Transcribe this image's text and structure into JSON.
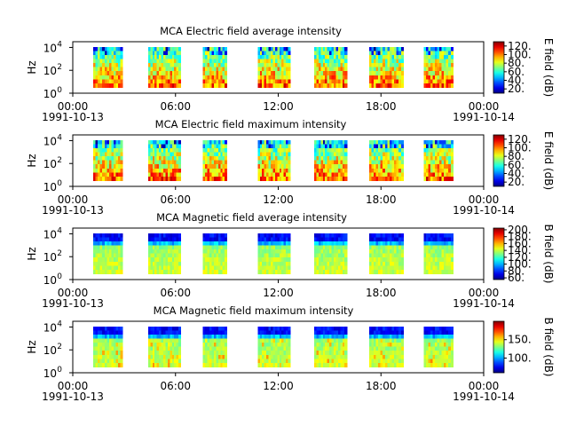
{
  "chart_data": [
    {
      "type": "heatmap",
      "title": "MCA  Electric field average intensity",
      "ylabel": "Hz",
      "y_ticks": [
        {
          "base": "10",
          "exp": "0"
        },
        {
          "base": "10",
          "exp": "2"
        },
        {
          "base": "10",
          "exp": "4"
        }
      ],
      "y_scale": "log",
      "ylim": [
        1,
        31623
      ],
      "x_ticks": [
        "00:00",
        "06:00",
        "12:00",
        "18:00",
        "00:00"
      ],
      "x_dates": [
        "1991-10-13",
        "1991-10-14"
      ],
      "xlim_hours": [
        0,
        24
      ],
      "colorbar": {
        "label": "E field (dB)",
        "range": [
          10,
          130
        ],
        "ticks": [
          "20.",
          "40.",
          "60.",
          "80.",
          "100.",
          "120."
        ]
      },
      "data_blocks_hours": [
        [
          1.2,
          2.9
        ],
        [
          4.4,
          6.3
        ],
        [
          7.6,
          9.0
        ],
        [
          10.8,
          12.7
        ],
        [
          14.1,
          16.0
        ],
        [
          17.3,
          19.3
        ],
        [
          20.5,
          22.2
        ]
      ],
      "occupied_frequency_hz": [
        3.2,
        11220
      ],
      "colormap": "jet"
    },
    {
      "type": "heatmap",
      "title": "MCA  Electric field maximum intensity",
      "ylabel": "Hz",
      "y_ticks": [
        {
          "base": "10",
          "exp": "0"
        },
        {
          "base": "10",
          "exp": "2"
        },
        {
          "base": "10",
          "exp": "4"
        }
      ],
      "y_scale": "log",
      "ylim": [
        1,
        31623
      ],
      "x_ticks": [
        "00:00",
        "06:00",
        "12:00",
        "18:00",
        "00:00"
      ],
      "x_dates": [
        "1991-10-13",
        "1991-10-14"
      ],
      "xlim_hours": [
        0,
        24
      ],
      "colorbar": {
        "label": "E field (dB)",
        "range": [
          10,
          130
        ],
        "ticks": [
          "20.",
          "40.",
          "60.",
          "80.",
          "100.",
          "120."
        ]
      },
      "data_blocks_hours": [
        [
          1.2,
          2.9
        ],
        [
          4.4,
          6.3
        ],
        [
          7.6,
          9.0
        ],
        [
          10.8,
          12.7
        ],
        [
          14.1,
          16.0
        ],
        [
          17.3,
          19.3
        ],
        [
          20.5,
          22.2
        ]
      ],
      "occupied_frequency_hz": [
        3.2,
        11220
      ],
      "colormap": "jet"
    },
    {
      "type": "heatmap",
      "title": "MCA  Magnetic field average intensity",
      "ylabel": "Hz",
      "y_ticks": [
        {
          "base": "10",
          "exp": "0"
        },
        {
          "base": "10",
          "exp": "2"
        },
        {
          "base": "10",
          "exp": "4"
        }
      ],
      "y_scale": "log",
      "ylim": [
        1,
        31623
      ],
      "x_ticks": [
        "00:00",
        "06:00",
        "12:00",
        "18:00",
        "00:00"
      ],
      "x_dates": [
        "1991-10-13",
        "1991-10-14"
      ],
      "xlim_hours": [
        0,
        24
      ],
      "colorbar": {
        "label": "B field (dB)",
        "range": [
          55,
          205
        ],
        "ticks": [
          "60.",
          "80.",
          "100.",
          "120.",
          "140.",
          "160.",
          "180.",
          "200."
        ]
      },
      "data_blocks_hours": [
        [
          1.2,
          2.9
        ],
        [
          4.4,
          6.3
        ],
        [
          7.6,
          9.0
        ],
        [
          10.8,
          12.7
        ],
        [
          14.1,
          16.0
        ],
        [
          17.3,
          19.3
        ],
        [
          20.5,
          22.2
        ]
      ],
      "occupied_frequency_hz": [
        3.2,
        11220
      ],
      "colormap": "jet"
    },
    {
      "type": "heatmap",
      "title": "MCA  Magnetic field maximum intensity",
      "ylabel": "Hz",
      "y_ticks": [
        {
          "base": "10",
          "exp": "0"
        },
        {
          "base": "10",
          "exp": "2"
        },
        {
          "base": "10",
          "exp": "4"
        }
      ],
      "y_scale": "log",
      "ylim": [
        1,
        31623
      ],
      "x_ticks": [
        "00:00",
        "06:00",
        "12:00",
        "18:00",
        "00:00"
      ],
      "x_dates": [
        "1991-10-13",
        "1991-10-14"
      ],
      "xlim_hours": [
        0,
        24
      ],
      "colorbar": {
        "label": "B field (dB)",
        "range": [
          60,
          200
        ],
        "ticks": [
          "100.",
          "150."
        ]
      },
      "data_blocks_hours": [
        [
          1.2,
          2.9
        ],
        [
          4.4,
          6.3
        ],
        [
          7.6,
          9.0
        ],
        [
          10.8,
          12.7
        ],
        [
          14.1,
          16.0
        ],
        [
          17.3,
          19.3
        ],
        [
          20.5,
          22.2
        ]
      ],
      "occupied_frequency_hz": [
        3.2,
        11220
      ],
      "colormap": "jet"
    }
  ]
}
